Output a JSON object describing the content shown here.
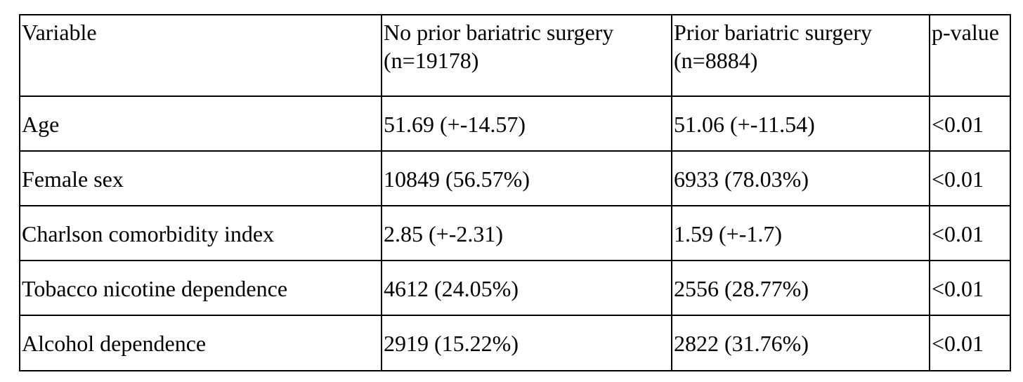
{
  "table": {
    "headers": [
      {
        "line1": "Variable",
        "line2": ""
      },
      {
        "line1": "No prior bariatric surgery",
        "line2": "(n=19178)"
      },
      {
        "line1": "Prior bariatric surgery",
        "line2": "(n=8884)"
      },
      {
        "line1": "p-value",
        "line2": ""
      }
    ],
    "rows": [
      {
        "variable": "Age",
        "no_prior": "51.69 (+-14.57)",
        "prior": "51.06 (+-11.54)",
        "p_value": "<0.01"
      },
      {
        "variable": "Female sex",
        "no_prior": "10849 (56.57%)",
        "prior": "6933 (78.03%)",
        "p_value": "<0.01"
      },
      {
        "variable": "Charlson comorbidity index",
        "no_prior": "2.85 (+-2.31)",
        "prior": "1.59 (+-1.7)",
        "p_value": "<0.01"
      },
      {
        "variable": "Tobacco nicotine dependence",
        "no_prior": "4612 (24.05%)",
        "prior": "2556 (28.77%)",
        "p_value": "<0.01"
      },
      {
        "variable": "Alcohol dependence",
        "no_prior": "2919 (15.22%)",
        "prior": "2822 (31.76%)",
        "p_value": "<0.01"
      }
    ]
  }
}
